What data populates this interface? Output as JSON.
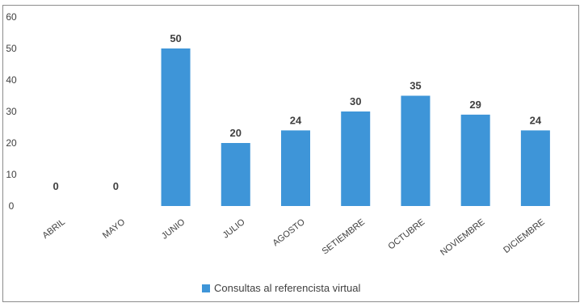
{
  "chart_data": {
    "type": "bar",
    "categories": [
      "ABRIL",
      "MAYO",
      "JUNIO",
      "JULIO",
      "AGOSTO",
      "SETIEMBRE",
      "OCTUBRE",
      "NOVIEMBRE",
      "DICIEMBRE"
    ],
    "series": [
      {
        "name": "Consultas al referencista virtual",
        "values": [
          0,
          0,
          50,
          20,
          24,
          30,
          35,
          29,
          24
        ],
        "color": "#3e95d8"
      }
    ],
    "data_labels": [
      "0",
      "0",
      "50",
      "20",
      "24",
      "30",
      "35",
      "29",
      "24"
    ],
    "y_ticks": [
      "0",
      "10",
      "20",
      "30",
      "40",
      "50",
      "60"
    ],
    "ylim": [
      0,
      60
    ],
    "grid": false,
    "legend_position": "bottom-center",
    "title": "",
    "xlabel": "",
    "ylabel": ""
  }
}
